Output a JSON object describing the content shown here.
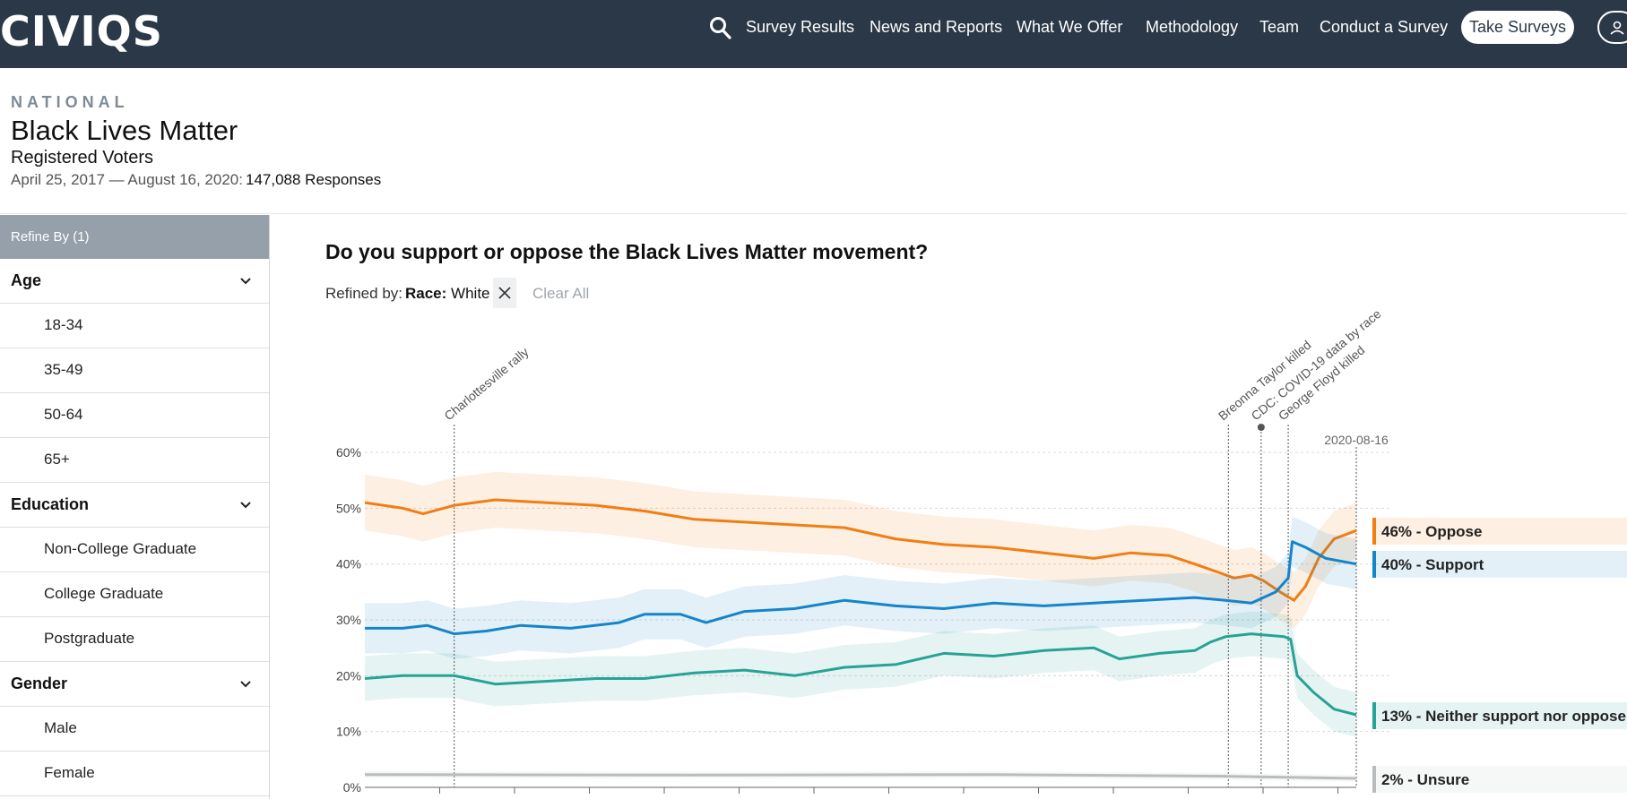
{
  "nav": {
    "logo": "CIVIQS",
    "links": [
      "Survey Results",
      "News and Reports",
      "What We Offer",
      "Methodology",
      "Team",
      "Conduct a Survey"
    ],
    "take_surveys": "Take Surveys"
  },
  "header": {
    "kicker": "NATIONAL",
    "title": "Black Lives Matter",
    "subtitle": "Registered Voters",
    "dates": "April 25, 2017 — August 16, 2020:",
    "responses": "147,088 Responses"
  },
  "sidebar": {
    "refine_label": "Refine By (1)",
    "groups": [
      {
        "label": "Age",
        "options": [
          "18-34",
          "35-49",
          "50-64",
          "65+"
        ]
      },
      {
        "label": "Education",
        "options": [
          "Non-College Graduate",
          "College Graduate",
          "Postgraduate"
        ]
      },
      {
        "label": "Gender",
        "options": [
          "Male",
          "Female"
        ]
      }
    ]
  },
  "filters": {
    "refined_by_label": "Refined by:",
    "chip_key": "Race:",
    "chip_value": "White",
    "clear_all": "Clear All"
  },
  "colors": {
    "oppose": "#f07e13",
    "support": "#1585c9",
    "neither": "#27a395",
    "unsure": "#b9bcbf",
    "nav_bg": "#2b3847"
  },
  "chart_data": {
    "type": "line",
    "title": "Do you support or oppose the Black Lives Matter movement?",
    "x_range": [
      "2017-04-25",
      "2020-08-16"
    ],
    "ylim": [
      0,
      60
    ],
    "y_ticks": [
      "0%",
      "10%",
      "20%",
      "30%",
      "40%",
      "50%",
      "60%"
    ],
    "grid": true,
    "events": [
      {
        "date": "2017-08-12",
        "label": "Charlottesville rally"
      },
      {
        "date": "2020-03-13",
        "label": "Breonna Taylor killed"
      },
      {
        "date": "2020-04-22",
        "label": "CDC: COVID-19 data by race"
      },
      {
        "date": "2020-05-25",
        "label": "George Floyd killed"
      },
      {
        "date": "2020-08-16",
        "label": "2020-08-16"
      }
    ],
    "series": [
      {
        "name": "Oppose",
        "end_label": "46% - Oppose",
        "color_key": "oppose",
        "band": 5,
        "points": [
          [
            "2017-04-25",
            51
          ],
          [
            "2017-06-10",
            50
          ],
          [
            "2017-07-05",
            49
          ],
          [
            "2017-08-12",
            50.5
          ],
          [
            "2017-10-01",
            51.5
          ],
          [
            "2017-12-01",
            51
          ],
          [
            "2018-02-01",
            50.5
          ],
          [
            "2018-04-01",
            49.5
          ],
          [
            "2018-06-01",
            48
          ],
          [
            "2018-08-01",
            47.5
          ],
          [
            "2018-10-01",
            47
          ],
          [
            "2018-12-01",
            46.5
          ],
          [
            "2019-02-01",
            44.5
          ],
          [
            "2019-04-01",
            43.5
          ],
          [
            "2019-06-01",
            43
          ],
          [
            "2019-08-01",
            42
          ],
          [
            "2019-10-01",
            41
          ],
          [
            "2019-11-15",
            42
          ],
          [
            "2020-01-01",
            41.5
          ],
          [
            "2020-02-01",
            40
          ],
          [
            "2020-03-01",
            38.5
          ],
          [
            "2020-03-20",
            37.5
          ],
          [
            "2020-04-10",
            38
          ],
          [
            "2020-04-25",
            37
          ],
          [
            "2020-05-15",
            35
          ],
          [
            "2020-06-01",
            33.5
          ],
          [
            "2020-06-15",
            36
          ],
          [
            "2020-07-01",
            41
          ],
          [
            "2020-07-20",
            44.5
          ],
          [
            "2020-08-16",
            46
          ]
        ]
      },
      {
        "name": "Support",
        "end_label": "40% - Support",
        "color_key": "support",
        "band": 4.5,
        "points": [
          [
            "2017-04-25",
            28.5
          ],
          [
            "2017-06-10",
            28.5
          ],
          [
            "2017-07-10",
            29
          ],
          [
            "2017-08-12",
            27.5
          ],
          [
            "2017-09-20",
            28
          ],
          [
            "2017-11-01",
            29
          ],
          [
            "2018-01-01",
            28.5
          ],
          [
            "2018-03-01",
            29.5
          ],
          [
            "2018-04-01",
            31
          ],
          [
            "2018-05-15",
            31
          ],
          [
            "2018-06-15",
            29.5
          ],
          [
            "2018-08-01",
            31.5
          ],
          [
            "2018-10-01",
            32
          ],
          [
            "2018-12-01",
            33.5
          ],
          [
            "2019-02-01",
            32.5
          ],
          [
            "2019-04-01",
            32
          ],
          [
            "2019-06-01",
            33
          ],
          [
            "2019-08-01",
            32.5
          ],
          [
            "2019-10-01",
            33
          ],
          [
            "2019-12-01",
            33.5
          ],
          [
            "2020-02-01",
            34
          ],
          [
            "2020-03-10",
            33.5
          ],
          [
            "2020-04-10",
            33
          ],
          [
            "2020-05-10",
            35
          ],
          [
            "2020-05-25",
            37.5
          ],
          [
            "2020-05-30",
            44
          ],
          [
            "2020-06-15",
            43
          ],
          [
            "2020-07-10",
            41
          ],
          [
            "2020-08-16",
            40
          ]
        ]
      },
      {
        "name": "Neither support nor oppose",
        "end_label": "13% - Neither support nor oppose",
        "color_key": "neither",
        "band": 4,
        "points": [
          [
            "2017-04-25",
            19.5
          ],
          [
            "2017-06-10",
            20
          ],
          [
            "2017-08-12",
            20
          ],
          [
            "2017-10-01",
            18.5
          ],
          [
            "2017-12-01",
            19
          ],
          [
            "2018-02-01",
            19.5
          ],
          [
            "2018-04-01",
            19.5
          ],
          [
            "2018-06-01",
            20.5
          ],
          [
            "2018-08-01",
            21
          ],
          [
            "2018-10-01",
            20
          ],
          [
            "2018-12-01",
            21.5
          ],
          [
            "2019-02-01",
            22
          ],
          [
            "2019-04-01",
            24
          ],
          [
            "2019-06-01",
            23.5
          ],
          [
            "2019-08-01",
            24.5
          ],
          [
            "2019-10-01",
            25
          ],
          [
            "2019-11-01",
            23
          ],
          [
            "2019-12-20",
            24
          ],
          [
            "2020-02-01",
            24.5
          ],
          [
            "2020-02-20",
            26
          ],
          [
            "2020-03-10",
            27
          ],
          [
            "2020-04-10",
            27.5
          ],
          [
            "2020-05-20",
            27
          ],
          [
            "2020-05-28",
            26.5
          ],
          [
            "2020-06-05",
            20
          ],
          [
            "2020-06-25",
            17
          ],
          [
            "2020-07-20",
            14
          ],
          [
            "2020-08-16",
            13
          ]
        ]
      },
      {
        "name": "Unsure",
        "end_label": "2% - Unsure",
        "color_key": "unsure",
        "band": 0.6,
        "points": [
          [
            "2017-04-25",
            2.3
          ],
          [
            "2018-06-01",
            2.2
          ],
          [
            "2019-06-01",
            2.3
          ],
          [
            "2020-03-01",
            2.0
          ],
          [
            "2020-08-16",
            1.6
          ]
        ]
      }
    ]
  }
}
